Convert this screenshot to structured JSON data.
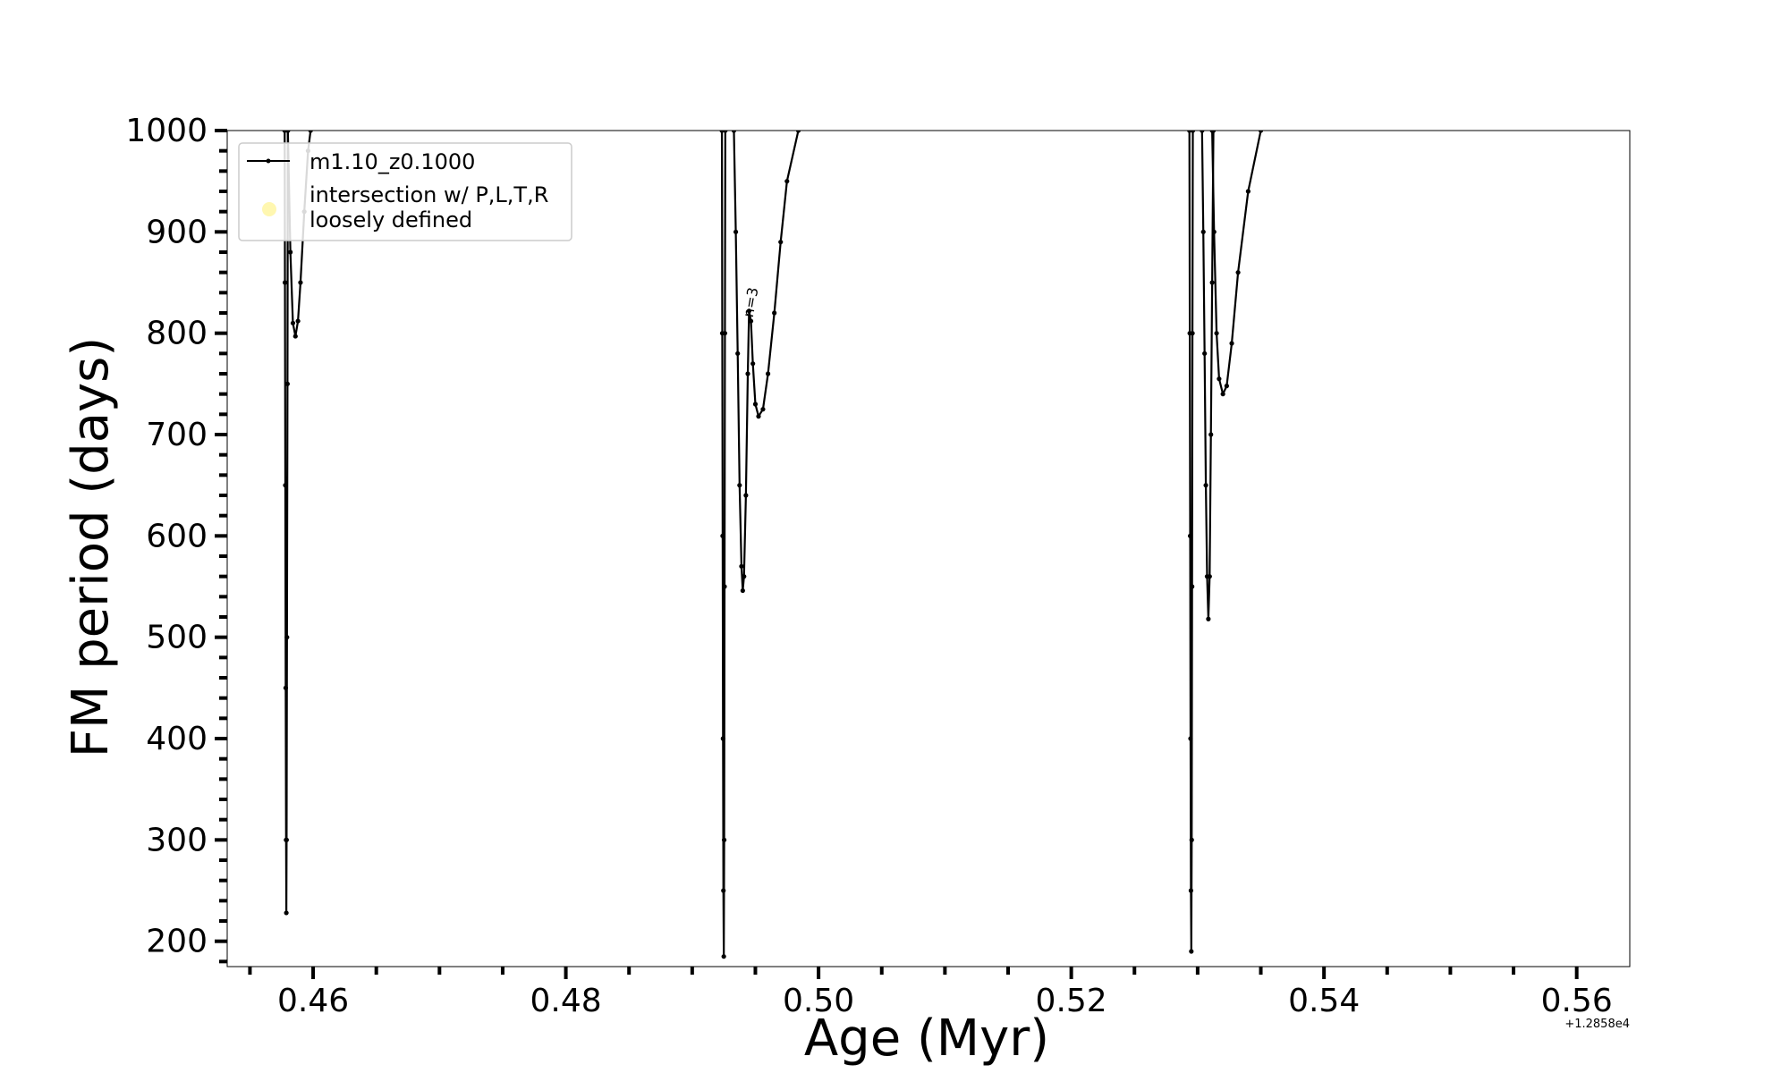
{
  "chart_data": {
    "type": "line",
    "xlabel": "Age (Myr)",
    "ylabel": "FM period (days)",
    "x_offset_label": "+1.2858e4",
    "xlim": [
      0.4532,
      0.5642
    ],
    "ylim": [
      175,
      1000
    ],
    "xticks": [
      0.46,
      0.48,
      0.5,
      0.52,
      0.54,
      0.56
    ],
    "xtick_labels": [
      "0.46",
      "0.48",
      "0.50",
      "0.52",
      "0.54",
      "0.56"
    ],
    "yticks": [
      200,
      300,
      400,
      500,
      600,
      700,
      800,
      900,
      1000
    ],
    "ytick_labels": [
      "200",
      "300",
      "400",
      "500",
      "600",
      "700",
      "800",
      "900",
      "1000"
    ],
    "grid": false,
    "legend_position": "top-left",
    "legend": [
      {
        "label": "m1.10_z0.1000",
        "marker": "line-dot",
        "color": "#000000"
      },
      {
        "label": "intersection w/ P,L,T,R\nloosely defined",
        "marker": "circle",
        "color": "#fff7b0"
      }
    ],
    "annotations": [
      {
        "text": "n=3",
        "x": 0.4948,
        "y": 815,
        "rotation": -80
      }
    ],
    "series": [
      {
        "name": "m1.10_z0.1000",
        "color": "#000000",
        "marker": "dot",
        "segments": [
          [
            [
              0.45775,
              1000
            ],
            [
              0.45777,
              850
            ],
            [
              0.4578,
              650
            ],
            [
              0.45783,
              450
            ],
            [
              0.45786,
              300
            ],
            [
              0.45788,
              228
            ],
            [
              0.4579,
              300
            ],
            [
              0.45793,
              500
            ],
            [
              0.45797,
              750
            ],
            [
              0.458,
              1000
            ]
          ],
          [
            [
              0.458,
              1000
            ],
            [
              0.4582,
              880
            ],
            [
              0.4584,
              810
            ],
            [
              0.4586,
              797
            ],
            [
              0.4588,
              812
            ],
            [
              0.459,
              850
            ],
            [
              0.4593,
              920
            ],
            [
              0.4596,
              980
            ],
            [
              0.4598,
              1000
            ]
          ],
          [
            [
              0.49235,
              1000
            ],
            [
              0.49238,
              800
            ],
            [
              0.49241,
              600
            ],
            [
              0.49244,
              400
            ],
            [
              0.49247,
              250
            ],
            [
              0.4925,
              185
            ],
            [
              0.49253,
              300
            ],
            [
              0.49256,
              550
            ],
            [
              0.49259,
              800
            ],
            [
              0.49262,
              1000
            ]
          ],
          [
            [
              0.4933,
              1000
            ],
            [
              0.49345,
              900
            ],
            [
              0.4936,
              780
            ],
            [
              0.49375,
              650
            ],
            [
              0.4939,
              570
            ],
            [
              0.494,
              546
            ],
            [
              0.4941,
              560
            ],
            [
              0.49425,
              640
            ],
            [
              0.4944,
              760
            ],
            [
              0.4945,
              822
            ],
            [
              0.49465,
              812
            ],
            [
              0.4948,
              770
            ],
            [
              0.495,
              730
            ],
            [
              0.49525,
              718
            ],
            [
              0.4956,
              725
            ],
            [
              0.496,
              760
            ],
            [
              0.4965,
              820
            ],
            [
              0.497,
              890
            ],
            [
              0.4975,
              950
            ],
            [
              0.4984,
              1000
            ]
          ],
          [
            [
              0.52935,
              1000
            ],
            [
              0.52938,
              800
            ],
            [
              0.52941,
              600
            ],
            [
              0.52944,
              400
            ],
            [
              0.52947,
              250
            ],
            [
              0.5295,
              190
            ],
            [
              0.52953,
              300
            ],
            [
              0.52956,
              550
            ],
            [
              0.52959,
              800
            ],
            [
              0.52962,
              1000
            ]
          ],
          [
            [
              0.53035,
              1000
            ],
            [
              0.53045,
              900
            ],
            [
              0.53055,
              780
            ],
            [
              0.53065,
              650
            ],
            [
              0.53075,
              560
            ],
            [
              0.53085,
              518
            ],
            [
              0.53095,
              560
            ],
            [
              0.53105,
              700
            ],
            [
              0.53115,
              850
            ],
            [
              0.53125,
              1000
            ]
          ],
          [
            [
              0.53115,
              1000
            ],
            [
              0.5313,
              900
            ],
            [
              0.5315,
              800
            ],
            [
              0.5317,
              755
            ],
            [
              0.532,
              740
            ],
            [
              0.5323,
              748
            ],
            [
              0.5327,
              790
            ],
            [
              0.5332,
              860
            ],
            [
              0.534,
              940
            ],
            [
              0.535,
              1000
            ]
          ]
        ]
      }
    ]
  }
}
